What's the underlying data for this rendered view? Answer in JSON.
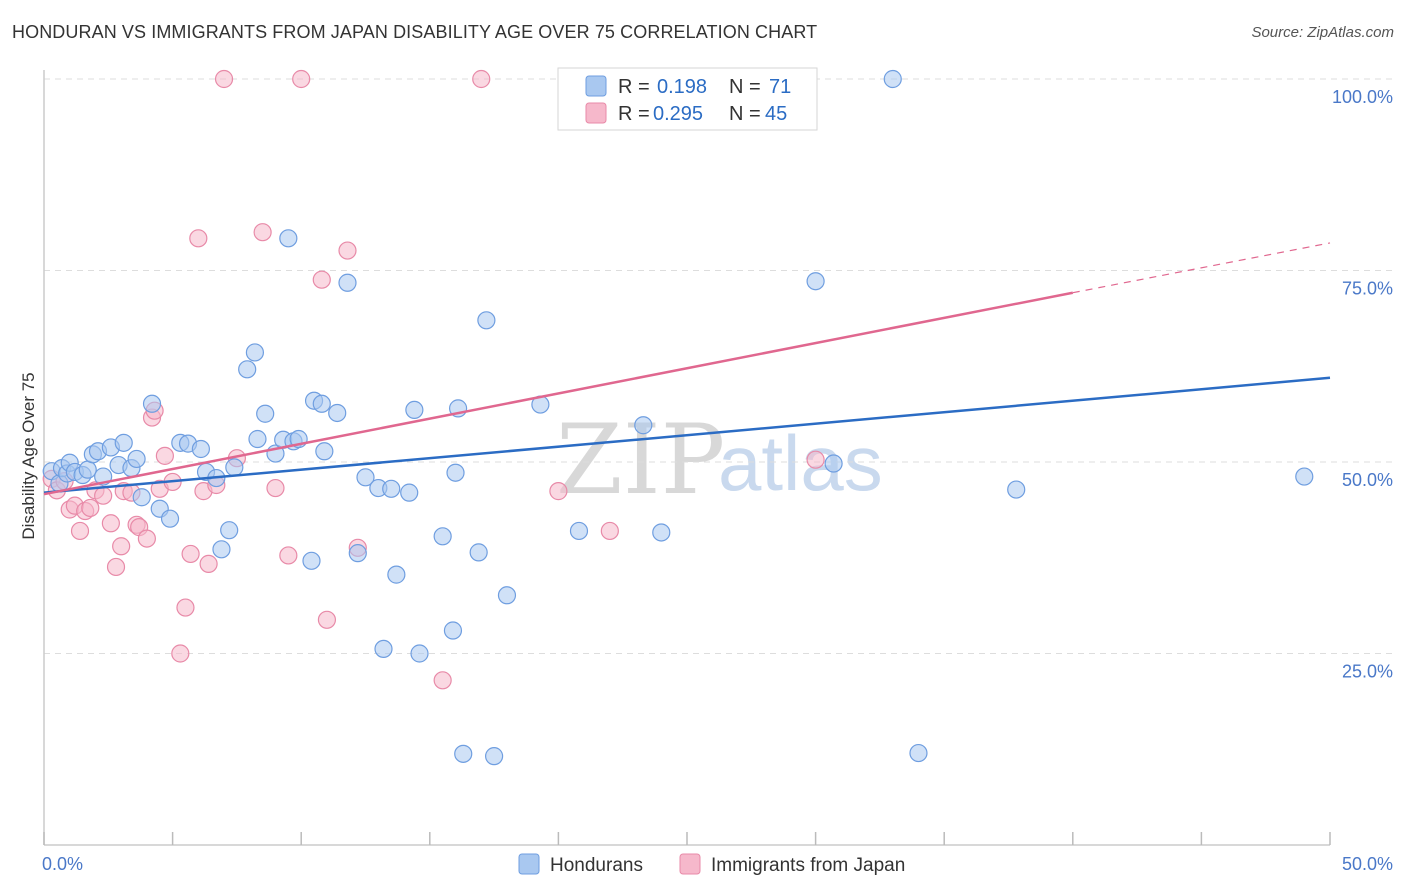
{
  "header": {
    "title": "HONDURAN VS IMMIGRANTS FROM JAPAN DISABILITY AGE OVER 75 CORRELATION CHART",
    "source": "Source: ZipAtlas.com"
  },
  "watermark": {
    "zip": "ZIP",
    "atlas": "atlas"
  },
  "legend_box": {
    "rows": [
      {
        "r_label": "R =",
        "r_value": "0.198",
        "n_label": "N =",
        "n_value": "71"
      },
      {
        "r_label": "R =",
        "r_value": "0.295",
        "n_label": "N =",
        "n_value": "45"
      }
    ]
  },
  "bottom_legend": {
    "series1": "Hondurans",
    "series2": "Immigrants from Japan"
  },
  "colors": {
    "blue_fill": "#a9c8f0",
    "blue_stroke": "#6f9ee0",
    "blue_line": "#2b6cc4",
    "pink_fill": "#f6b8cb",
    "pink_stroke": "#e88aa8",
    "pink_line": "#e0678f",
    "grid": "#dddddd",
    "tick_text": "#4a78c8"
  },
  "chart_data": {
    "type": "scatter",
    "title": "HONDURAN VS IMMIGRANTS FROM JAPAN DISABILITY AGE OVER 75 CORRELATION CHART",
    "xlabel": "",
    "ylabel": "Disability Age Over 75",
    "xlim": [
      0,
      50
    ],
    "ylim": [
      0,
      100
    ],
    "x_tick_labels": [
      "0.0%",
      "50.0%"
    ],
    "y_tick_values": [
      25,
      50,
      75,
      100
    ],
    "y_tick_labels": [
      "25.0%",
      "50.0%",
      "75.0%",
      "100.0%"
    ],
    "grid": true,
    "series": [
      {
        "name": "Hondurans",
        "R": 0.198,
        "N": 71,
        "trend": {
          "x": [
            0,
            50
          ],
          "y": [
            46.0,
            61.0
          ]
        },
        "x": [
          0.3,
          0.6,
          0.7,
          0.9,
          1.0,
          1.2,
          1.5,
          1.7,
          1.9,
          2.1,
          2.3,
          2.6,
          2.9,
          3.1,
          3.4,
          3.6,
          3.8,
          4.2,
          4.5,
          4.9,
          5.3,
          5.6,
          6.3,
          6.1,
          6.7,
          6.9,
          7.2,
          7.4,
          7.9,
          8.2,
          8.3,
          8.6,
          9.0,
          9.3,
          9.5,
          9.7,
          9.9,
          10.4,
          10.5,
          10.8,
          10.9,
          11.4,
          11.8,
          12.2,
          12.5,
          13.0,
          13.2,
          13.5,
          13.7,
          14.2,
          14.4,
          14.6,
          15.5,
          15.9,
          16.1,
          16.3,
          16.9,
          17.2,
          17.5,
          18.0,
          19.3,
          20.8,
          23.3,
          24.0,
          30.0,
          30.7,
          33.0,
          34.0,
          37.8,
          49.0,
          16.0
        ],
        "y": [
          48.8,
          47.2,
          49.2,
          48.5,
          49.9,
          48.7,
          48.3,
          49.0,
          51.0,
          51.4,
          48.1,
          51.9,
          49.6,
          52.5,
          49.2,
          50.4,
          45.4,
          57.6,
          43.9,
          42.6,
          52.5,
          52.4,
          48.7,
          51.7,
          47.9,
          38.6,
          41.1,
          49.3,
          62.1,
          64.3,
          53.0,
          56.3,
          51.1,
          52.9,
          79.2,
          52.7,
          53.0,
          37.1,
          58.0,
          57.6,
          51.4,
          56.4,
          73.4,
          38.1,
          48.0,
          46.6,
          25.6,
          46.5,
          35.3,
          46.0,
          56.8,
          25.0,
          40.3,
          28.0,
          57.0,
          11.9,
          38.2,
          68.5,
          11.6,
          32.6,
          57.5,
          41.0,
          54.8,
          40.8,
          73.6,
          49.8,
          100.0,
          12.0,
          46.4,
          48.1,
          48.6
        ]
      },
      {
        "name": "Immigrants from Japan",
        "R": 0.295,
        "N": 45,
        "trend": {
          "x": [
            0,
            40
          ],
          "y": [
            45.8,
            72.1
          ]
        },
        "trend_dashed": {
          "x": [
            40,
            50
          ],
          "y": [
            72.1,
            78.6
          ]
        },
        "x": [
          0.3,
          0.5,
          0.8,
          1.0,
          1.2,
          1.4,
          1.6,
          1.8,
          2.0,
          2.3,
          2.6,
          2.8,
          3.0,
          3.1,
          3.4,
          3.6,
          3.7,
          4.0,
          4.2,
          4.3,
          4.5,
          4.7,
          5.0,
          5.3,
          5.5,
          5.7,
          6.0,
          6.2,
          6.4,
          6.7,
          7.0,
          7.5,
          8.5,
          9.0,
          9.5,
          10.0,
          10.8,
          11.0,
          11.8,
          12.2,
          15.5,
          17.0,
          20.0,
          22.0,
          30.0
        ],
        "y": [
          47.8,
          46.3,
          47.5,
          43.8,
          44.3,
          41.0,
          43.6,
          44.0,
          46.3,
          45.6,
          42.0,
          36.3,
          39.0,
          46.2,
          46.0,
          41.8,
          41.5,
          40.0,
          55.8,
          56.7,
          46.5,
          50.8,
          47.4,
          25.0,
          31.0,
          38.0,
          79.2,
          46.2,
          36.7,
          47.0,
          100.0,
          50.5,
          80.0,
          46.6,
          37.8,
          100.0,
          73.8,
          29.4,
          77.6,
          38.8,
          21.5,
          100.0,
          46.2,
          41.0,
          50.3
        ]
      }
    ]
  }
}
